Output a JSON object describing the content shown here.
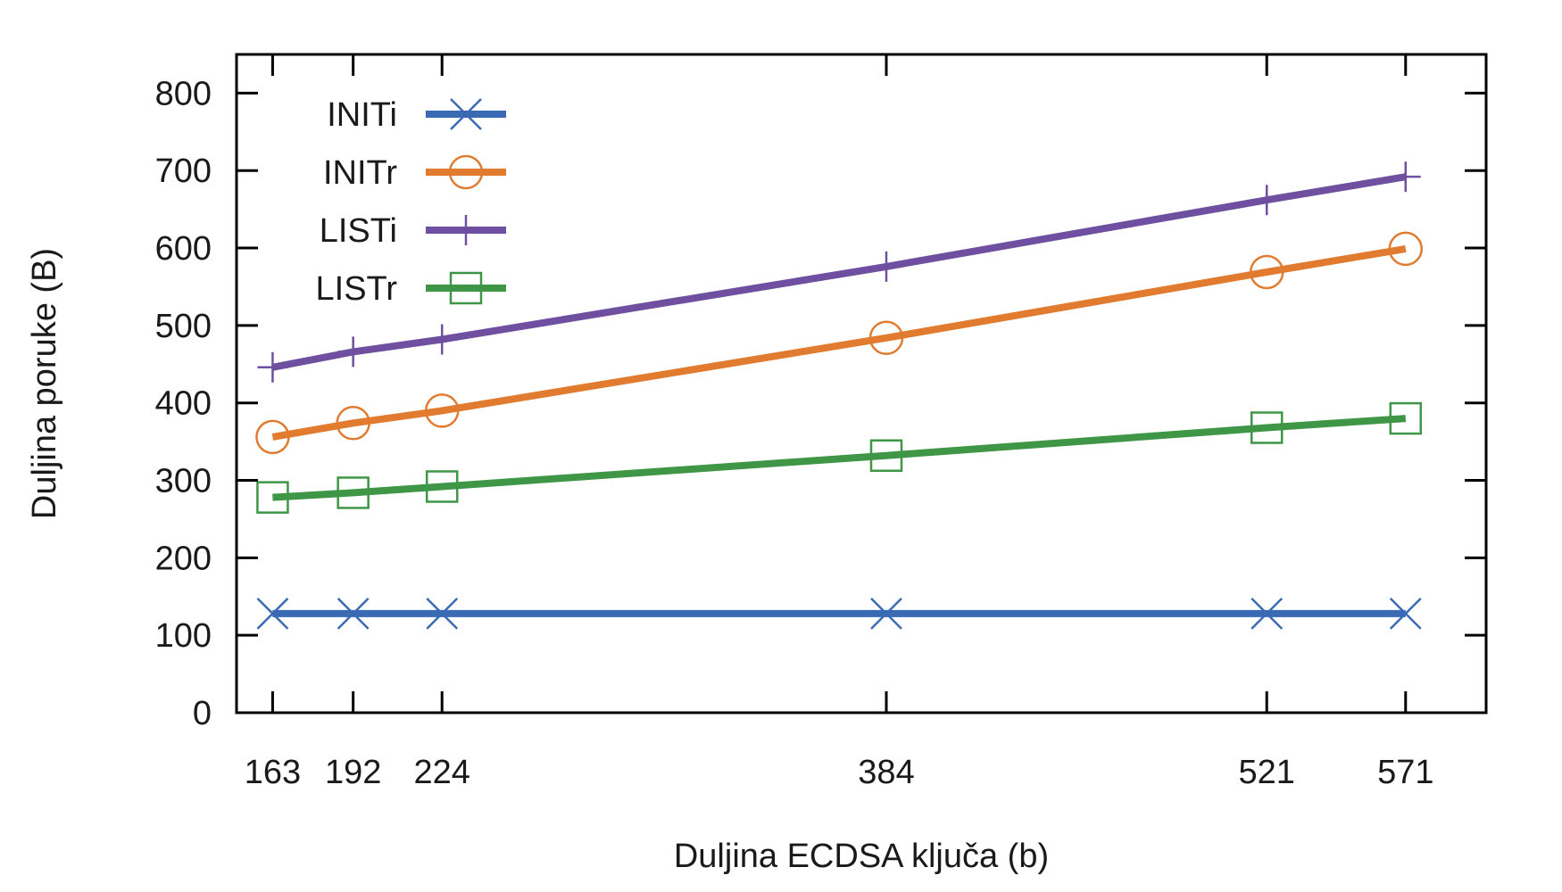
{
  "chart_data": {
    "type": "line",
    "title": "",
    "xlabel": "Duljina ECDSA ključa (b)",
    "ylabel": "Duljina poruke (B)",
    "x": [
      163,
      192,
      224,
      384,
      521,
      571
    ],
    "xlim": [
      150,
      600
    ],
    "ylim": [
      0,
      850
    ],
    "xticks": [
      163,
      192,
      224,
      384,
      521,
      571
    ],
    "yticks": [
      0,
      100,
      200,
      300,
      400,
      500,
      600,
      700,
      800
    ],
    "grid": false,
    "legend_position": "top-left",
    "series": [
      {
        "name": "INITi",
        "color": "#3a6ab4",
        "marker": "x",
        "values": [
          128,
          128,
          128,
          128,
          128,
          128
        ]
      },
      {
        "name": "INITr",
        "color": "#e07b30",
        "marker": "circle",
        "values": [
          356,
          374,
          390,
          484,
          569,
          599
        ]
      },
      {
        "name": "LISTi",
        "color": "#6e4fa0",
        "marker": "plus",
        "values": [
          446,
          466,
          482,
          576,
          662,
          692
        ]
      },
      {
        "name": "LISTr",
        "color": "#3e9646",
        "marker": "square",
        "values": [
          278,
          284,
          292,
          332,
          368,
          380
        ]
      }
    ]
  }
}
